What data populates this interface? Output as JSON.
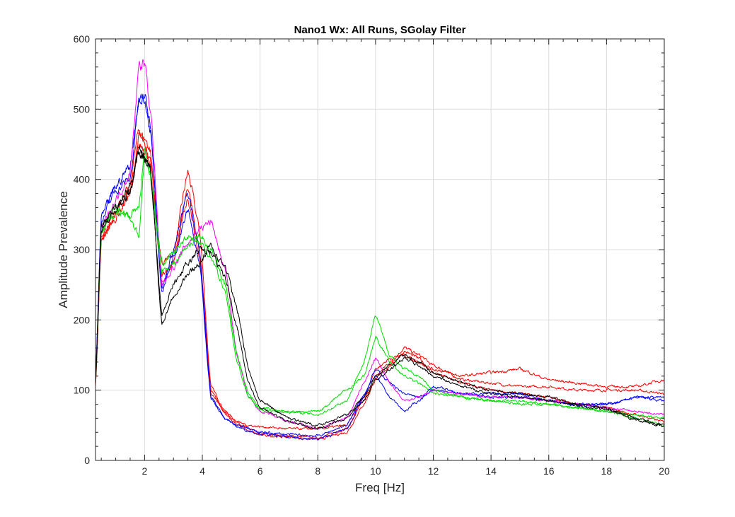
{
  "chart_data": {
    "type": "line",
    "title": "Nano1 Wx: All Runs, SGolay Filter",
    "xlabel": "Freq [Hz]",
    "ylabel": "Amplitude Prevalence",
    "xlim": [
      0.3,
      20
    ],
    "ylim": [
      0,
      600
    ],
    "xticks": [
      2,
      4,
      6,
      8,
      10,
      12,
      14,
      16,
      18,
      20
    ],
    "yticks": [
      0,
      100,
      200,
      300,
      400,
      500,
      600
    ],
    "grid": true,
    "legend": "none",
    "x": [
      0.3,
      0.5,
      1,
      1.5,
      1.8,
      2,
      2.2,
      2.6,
      3,
      3.5,
      3.9,
      4.3,
      4.8,
      5.2,
      5.6,
      6,
      7,
      8,
      9,
      9.6,
      10,
      10.5,
      11,
      11.5,
      12,
      13,
      14,
      15,
      16,
      17,
      18,
      19,
      20
    ],
    "series": [
      {
        "color": "#ff0000",
        "values": [
          105,
          310,
          355,
          395,
          470,
          455,
          420,
          280,
          295,
          410,
          330,
          105,
          70,
          55,
          45,
          38,
          35,
          32,
          45,
          85,
          120,
          140,
          160,
          150,
          135,
          115,
          110,
          105,
          105,
          100,
          100,
          100,
          95
        ]
      },
      {
        "color": "#ff0000",
        "values": [
          110,
          315,
          345,
          380,
          460,
          450,
          440,
          260,
          280,
          390,
          300,
          100,
          65,
          52,
          42,
          36,
          33,
          30,
          40,
          80,
          115,
          135,
          155,
          145,
          125,
          110,
          100,
          95,
          90,
          80,
          75,
          65,
          55
        ]
      },
      {
        "color": "#ff0000",
        "values": [
          108,
          320,
          350,
          385,
          450,
          440,
          430,
          250,
          285,
          375,
          290,
          95,
          68,
          55,
          50,
          48,
          45,
          45,
          50,
          90,
          130,
          145,
          150,
          140,
          130,
          120,
          125,
          130,
          115,
          110,
          105,
          105,
          115
        ]
      },
      {
        "color": "#0000ff",
        "values": [
          120,
          340,
          385,
          400,
          510,
          520,
          480,
          245,
          300,
          380,
          300,
          90,
          60,
          48,
          42,
          38,
          33,
          30,
          45,
          90,
          130,
          110,
          95,
          90,
          100,
          95,
          95,
          95,
          85,
          80,
          80,
          90,
          90
        ]
      },
      {
        "color": "#0000ff",
        "values": [
          118,
          345,
          390,
          420,
          515,
          510,
          470,
          240,
          290,
          360,
          280,
          88,
          58,
          50,
          45,
          40,
          37,
          35,
          50,
          95,
          120,
          90,
          70,
          85,
          105,
          95,
          90,
          90,
          85,
          78,
          80,
          90,
          85
        ]
      },
      {
        "color": "#ff00ff",
        "values": [
          115,
          330,
          370,
          410,
          560,
          565,
          500,
          250,
          275,
          310,
          330,
          340,
          270,
          150,
          90,
          70,
          55,
          45,
          60,
          110,
          145,
          110,
          85,
          90,
          100,
          95,
          90,
          90,
          85,
          80,
          75,
          70,
          65
        ]
      },
      {
        "color": "#00dd00",
        "values": [
          112,
          325,
          360,
          345,
          320,
          430,
          400,
          270,
          280,
          305,
          320,
          300,
          250,
          150,
          95,
          75,
          70,
          65,
          85,
          140,
          205,
          150,
          130,
          120,
          100,
          90,
          85,
          85,
          80,
          75,
          70,
          65,
          60
        ]
      },
      {
        "color": "#00dd00",
        "values": [
          110,
          320,
          355,
          350,
          360,
          440,
          410,
          280,
          295,
          320,
          310,
          290,
          240,
          140,
          90,
          72,
          68,
          70,
          100,
          120,
          175,
          140,
          120,
          110,
          95,
          90,
          85,
          80,
          80,
          75,
          70,
          60,
          50
        ]
      },
      {
        "color": "#000000",
        "values": [
          110,
          330,
          355,
          390,
          440,
          430,
          415,
          195,
          235,
          265,
          280,
          305,
          275,
          215,
          130,
          85,
          60,
          50,
          65,
          90,
          120,
          135,
          150,
          140,
          125,
          110,
          100,
          95,
          90,
          80,
          75,
          60,
          50
        ]
      },
      {
        "color": "#000000",
        "values": [
          112,
          335,
          360,
          380,
          445,
          435,
          410,
          210,
          250,
          280,
          300,
          295,
          260,
          190,
          110,
          75,
          55,
          45,
          60,
          85,
          115,
          130,
          145,
          135,
          120,
          105,
          95,
          90,
          85,
          78,
          72,
          58,
          48
        ]
      }
    ]
  }
}
